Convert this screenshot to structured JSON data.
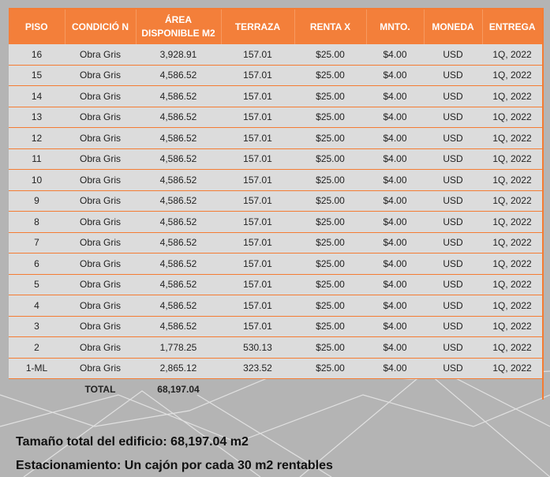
{
  "headers": [
    "PISO",
    "CONDICIÓ N",
    "ÁREA DISPONIBLE M2",
    "TERRAZA",
    "RENTA X",
    "MNTO.",
    "MONEDA",
    "ENTREGA"
  ],
  "rows": [
    [
      "16",
      "Obra Gris",
      "3,928.91",
      "157.01",
      "$25.00",
      "$4.00",
      "USD",
      "1Q, 2022"
    ],
    [
      "15",
      "Obra Gris",
      "4,586.52",
      "157.01",
      "$25.00",
      "$4.00",
      "USD",
      "1Q, 2022"
    ],
    [
      "14",
      "Obra Gris",
      "4,586.52",
      "157.01",
      "$25.00",
      "$4.00",
      "USD",
      "1Q, 2022"
    ],
    [
      "13",
      "Obra Gris",
      "4,586.52",
      "157.01",
      "$25.00",
      "$4.00",
      "USD",
      "1Q, 2022"
    ],
    [
      "12",
      "Obra Gris",
      "4,586.52",
      "157.01",
      "$25.00",
      "$4.00",
      "USD",
      "1Q, 2022"
    ],
    [
      "11",
      "Obra Gris",
      "4,586.52",
      "157.01",
      "$25.00",
      "$4.00",
      "USD",
      "1Q, 2022"
    ],
    [
      "10",
      "Obra Gris",
      "4,586.52",
      "157.01",
      "$25.00",
      "$4.00",
      "USD",
      "1Q, 2022"
    ],
    [
      "9",
      "Obra Gris",
      "4,586.52",
      "157.01",
      "$25.00",
      "$4.00",
      "USD",
      "1Q, 2022"
    ],
    [
      "8",
      "Obra Gris",
      "4,586.52",
      "157.01",
      "$25.00",
      "$4.00",
      "USD",
      "1Q, 2022"
    ],
    [
      "7",
      "Obra Gris",
      "4,586.52",
      "157.01",
      "$25.00",
      "$4.00",
      "USD",
      "1Q, 2022"
    ],
    [
      "6",
      "Obra Gris",
      "4,586.52",
      "157.01",
      "$25.00",
      "$4.00",
      "USD",
      "1Q, 2022"
    ],
    [
      "5",
      "Obra Gris",
      "4,586.52",
      "157.01",
      "$25.00",
      "$4.00",
      "USD",
      "1Q, 2022"
    ],
    [
      "4",
      "Obra Gris",
      "4,586.52",
      "157.01",
      "$25.00",
      "$4.00",
      "USD",
      "1Q, 2022"
    ],
    [
      "3",
      "Obra Gris",
      "4,586.52",
      "157.01",
      "$25.00",
      "$4.00",
      "USD",
      "1Q, 2022"
    ],
    [
      "2",
      "Obra Gris",
      "1,778.25",
      "530.13",
      "$25.00",
      "$4.00",
      "USD",
      "1Q, 2022"
    ],
    [
      "1-ML",
      "Obra Gris",
      "2,865.12",
      "323.52",
      "$25.00",
      "$4.00",
      "USD",
      "1Q, 2022"
    ]
  ],
  "total": {
    "label": "TOTAL",
    "value": "68,197.04"
  },
  "footer": {
    "line1": "Tamaño total del edificio: 68,197.04 m2",
    "line2": "Estacionamiento: Un cajón por cada 30 m2 rentables"
  }
}
